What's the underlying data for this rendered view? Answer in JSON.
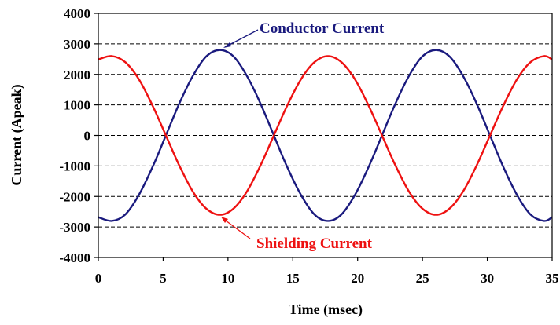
{
  "chart_data": {
    "type": "line",
    "title": "",
    "xlabel": "Time (msec)",
    "ylabel": "Current (Apeak)",
    "xlim": [
      0,
      35
    ],
    "ylim": [
      -4000,
      4000
    ],
    "xticks": [
      "0",
      "5",
      "10",
      "15",
      "20",
      "25",
      "30",
      "35"
    ],
    "yticks": [
      "4000",
      "3000",
      "2000",
      "1000",
      "0",
      "-1000",
      "-2000",
      "-3000",
      "-4000"
    ],
    "grid": "horizontal dashed",
    "legend": "none",
    "series": [
      {
        "name": "Conductor Current",
        "color": "#1a1a7e",
        "x": [
          0,
          1.04,
          2.08,
          3.13,
          4.17,
          5.21,
          6.25,
          7.29,
          8.33,
          9.38,
          10.42,
          11.46,
          12.5,
          13.54,
          14.58,
          15.63,
          16.67,
          17.71,
          18.75,
          19.79,
          20.83,
          21.88,
          22.92,
          23.96,
          25.0,
          26.04,
          27.08,
          28.13,
          29.17,
          30.21,
          31.25,
          32.29,
          33.33,
          34.38,
          35.0
        ],
        "values": [
          -2680,
          -2800,
          -2590,
          -1950,
          -1050,
          0,
          1050,
          1950,
          2590,
          2800,
          2590,
          1950,
          1050,
          0,
          -1050,
          -1950,
          -2590,
          -2800,
          -2590,
          -1950,
          -1050,
          0,
          1050,
          1950,
          2590,
          2800,
          2590,
          1950,
          1050,
          0,
          -1050,
          -1950,
          -2590,
          -2800,
          -2680
        ]
      },
      {
        "name": "Shielding Current",
        "color": "#ee1111",
        "x": [
          0,
          1.04,
          2.08,
          3.13,
          4.17,
          5.21,
          6.25,
          7.29,
          8.33,
          9.38,
          10.42,
          11.46,
          12.5,
          13.54,
          14.58,
          15.63,
          16.67,
          17.71,
          18.75,
          19.79,
          20.83,
          21.88,
          22.92,
          23.96,
          25.0,
          26.04,
          27.08,
          28.13,
          29.17,
          30.21,
          31.25,
          32.29,
          33.33,
          34.38,
          35.0
        ],
        "values": [
          2490,
          2600,
          2400,
          1840,
          990,
          0,
          -990,
          -1840,
          -2400,
          -2600,
          -2400,
          -1840,
          -990,
          0,
          990,
          1840,
          2400,
          2600,
          2400,
          1840,
          990,
          0,
          -990,
          -1840,
          -2400,
          -2600,
          -2400,
          -1840,
          -990,
          0,
          990,
          1840,
          2400,
          2600,
          2490
        ]
      }
    ],
    "annotations": [
      {
        "text": "Conductor Current",
        "color": "#1a1a7e",
        "points_to": [
          9.4,
          2800
        ]
      },
      {
        "text": "Shielding Current",
        "color": "#ee1111",
        "points_to": [
          9.4,
          -2600
        ]
      }
    ]
  }
}
